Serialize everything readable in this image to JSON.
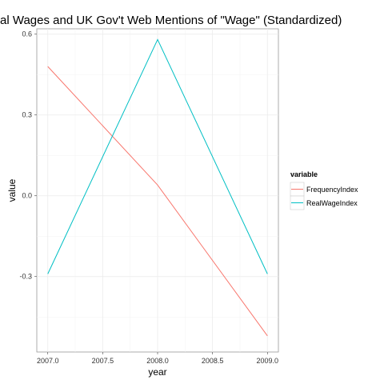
{
  "chart_data": {
    "type": "line",
    "title": "al Wages and UK Gov't Web Mentions of \"Wage\" (Standardized)",
    "xlabel": "year",
    "ylabel": "value",
    "x": [
      2007.0,
      2008.0,
      2009.0
    ],
    "xlim": [
      2006.9,
      2009.1
    ],
    "ylim": [
      -0.58,
      0.62
    ],
    "x_ticks": [
      2007.0,
      2007.5,
      2008.0,
      2008.5,
      2009.0
    ],
    "x_tick_labels": [
      "2007.0",
      "2007.5",
      "2008.0",
      "2008.5",
      "2009.0"
    ],
    "y_ticks": [
      -0.3,
      0.0,
      0.3,
      0.6
    ],
    "y_tick_labels": [
      "-0.3",
      "0.0",
      "0.3",
      "0.6"
    ],
    "grid": true,
    "legend": {
      "title": "variable",
      "position": "right"
    },
    "series": [
      {
        "name": "FrequencyIndex",
        "color": "#f8766d",
        "values": [
          0.48,
          0.04,
          -0.52
        ]
      },
      {
        "name": "RealWageIndex",
        "color": "#00bfc4",
        "values": [
          -0.29,
          0.58,
          -0.29
        ]
      }
    ]
  }
}
